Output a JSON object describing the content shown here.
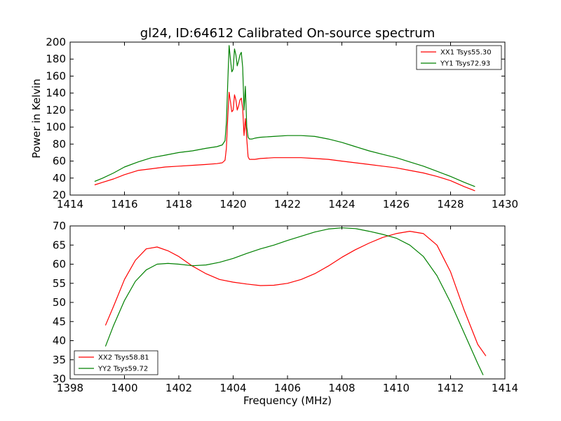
{
  "chart_data": [
    {
      "type": "line",
      "title": "gl24, ID:64612 Calibrated On-source spectrum",
      "xlabel": "",
      "ylabel": "Power in Kelvin",
      "xlim": [
        1414,
        1430
      ],
      "ylim": [
        20,
        200
      ],
      "xticks": [
        1414,
        1416,
        1418,
        1420,
        1422,
        1424,
        1426,
        1428,
        1430
      ],
      "yticks": [
        20,
        40,
        60,
        80,
        100,
        120,
        140,
        160,
        180,
        200
      ],
      "grid": false,
      "legend_position": "top-right",
      "series": [
        {
          "name": "XX1 Tsys55.30",
          "color": "#ff0000",
          "x": [
            1414.9,
            1415.2,
            1415.6,
            1416.0,
            1416.5,
            1417.0,
            1417.5,
            1418.0,
            1418.5,
            1419.0,
            1419.4,
            1419.6,
            1419.7,
            1419.75,
            1419.8,
            1419.85,
            1419.9,
            1419.95,
            1420.0,
            1420.05,
            1420.1,
            1420.15,
            1420.2,
            1420.25,
            1420.3,
            1420.35,
            1420.4,
            1420.45,
            1420.5,
            1420.55,
            1420.6,
            1420.65,
            1420.7,
            1420.8,
            1421.0,
            1421.5,
            1422.0,
            1422.5,
            1423.0,
            1423.5,
            1424.0,
            1424.5,
            1425.0,
            1425.5,
            1426.0,
            1426.5,
            1427.0,
            1427.5,
            1428.0,
            1428.5,
            1428.9
          ],
          "y": [
            32,
            35,
            39,
            44,
            49,
            51,
            53,
            54,
            55,
            56,
            57,
            58,
            61,
            75,
            110,
            141,
            130,
            118,
            120,
            138,
            132,
            120,
            125,
            132,
            134,
            122,
            90,
            110,
            86,
            65,
            62,
            62,
            62,
            62,
            63,
            64,
            64,
            64,
            63,
            62,
            60,
            58,
            56,
            54,
            52,
            49,
            46,
            42,
            37,
            30,
            25
          ]
        },
        {
          "name": "YY1 Tsys72.93",
          "color": "#008000",
          "x": [
            1414.9,
            1415.2,
            1415.6,
            1416.0,
            1416.5,
            1417.0,
            1417.5,
            1418.0,
            1418.5,
            1419.0,
            1419.4,
            1419.6,
            1419.7,
            1419.75,
            1419.8,
            1419.85,
            1419.9,
            1419.95,
            1420.0,
            1420.05,
            1420.1,
            1420.15,
            1420.2,
            1420.25,
            1420.3,
            1420.35,
            1420.4,
            1420.45,
            1420.5,
            1420.55,
            1420.6,
            1420.65,
            1420.7,
            1420.8,
            1421.0,
            1421.5,
            1422.0,
            1422.5,
            1423.0,
            1423.5,
            1424.0,
            1424.5,
            1425.0,
            1425.5,
            1426.0,
            1426.5,
            1427.0,
            1427.5,
            1428.0,
            1428.5,
            1428.9
          ],
          "y": [
            36,
            40,
            46,
            53,
            59,
            64,
            67,
            70,
            72,
            75,
            77,
            79,
            84,
            105,
            150,
            196,
            180,
            165,
            168,
            192,
            185,
            172,
            178,
            185,
            188,
            170,
            120,
            148,
            100,
            88,
            86,
            86,
            86,
            87,
            88,
            89,
            90,
            90,
            89,
            86,
            82,
            77,
            72,
            68,
            64,
            59,
            54,
            48,
            42,
            35,
            30
          ]
        }
      ]
    },
    {
      "type": "line",
      "title": "",
      "xlabel": "Frequency (MHz)",
      "ylabel": "",
      "xlim": [
        1398,
        1414
      ],
      "ylim": [
        30,
        70
      ],
      "xticks": [
        1398,
        1400,
        1402,
        1404,
        1406,
        1408,
        1410,
        1412,
        1414
      ],
      "yticks": [
        30,
        35,
        40,
        45,
        50,
        55,
        60,
        65,
        70
      ],
      "grid": false,
      "legend_position": "bottom-left",
      "series": [
        {
          "name": "XX2 Tsys58.81",
          "color": "#ff0000",
          "x": [
            1399.3,
            1399.6,
            1400.0,
            1400.4,
            1400.8,
            1401.2,
            1401.6,
            1402.0,
            1402.5,
            1403.0,
            1403.5,
            1404.0,
            1404.5,
            1405.0,
            1405.5,
            1406.0,
            1406.5,
            1407.0,
            1407.5,
            1408.0,
            1408.5,
            1409.0,
            1409.5,
            1410.0,
            1410.5,
            1411.0,
            1411.5,
            1412.0,
            1412.5,
            1413.0,
            1413.3
          ],
          "y": [
            44,
            49,
            56,
            61,
            64,
            64.5,
            63.5,
            62,
            59.5,
            57.5,
            56,
            55.3,
            54.8,
            54.4,
            54.5,
            55,
            56,
            57.5,
            59.5,
            61.8,
            63.8,
            65.5,
            67,
            68,
            68.6,
            68,
            65,
            58,
            48,
            39,
            36
          ]
        },
        {
          "name": "YY2 Tsys59.72",
          "color": "#008000",
          "x": [
            1399.3,
            1399.6,
            1400.0,
            1400.4,
            1400.8,
            1401.2,
            1401.6,
            1402.0,
            1402.5,
            1403.0,
            1403.5,
            1404.0,
            1404.5,
            1405.0,
            1405.5,
            1406.0,
            1406.5,
            1407.0,
            1407.5,
            1408.0,
            1408.5,
            1409.0,
            1409.5,
            1410.0,
            1410.5,
            1411.0,
            1411.5,
            1412.0,
            1412.5,
            1413.0,
            1413.2
          ],
          "y": [
            38.5,
            44,
            50.5,
            55.5,
            58.5,
            60,
            60.2,
            60,
            59.6,
            59.8,
            60.5,
            61.5,
            62.8,
            64,
            65,
            66.2,
            67.3,
            68.4,
            69.2,
            69.5,
            69.3,
            68.6,
            67.8,
            66.8,
            65,
            62,
            57,
            50,
            42,
            34,
            31
          ]
        }
      ]
    }
  ]
}
